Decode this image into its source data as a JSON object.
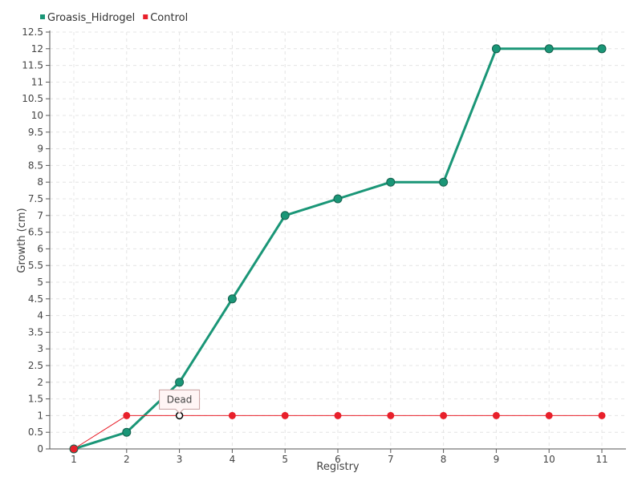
{
  "chart_data": {
    "type": "line",
    "title": "",
    "xlabel": "Registry",
    "ylabel": "Growth (cm)",
    "x": [
      1,
      2,
      3,
      4,
      5,
      6,
      7,
      8,
      9,
      10,
      11
    ],
    "ylim": [
      0,
      12.5
    ],
    "ytick_step": 0.5,
    "grid": true,
    "legend_position": "top-left",
    "series": [
      {
        "name": "Groasis_Hidrogel",
        "color": "#1a9677",
        "values": [
          0,
          0.5,
          2,
          4.5,
          7,
          7.5,
          8,
          8,
          12,
          12,
          12
        ]
      },
      {
        "name": "Control",
        "color": "#e8202b",
        "values": [
          0,
          1,
          1,
          1,
          1,
          1,
          1,
          1,
          1,
          1,
          1
        ]
      }
    ],
    "annotation": {
      "series": "Control",
      "x": 3,
      "y": 1,
      "text": "Dead"
    }
  }
}
